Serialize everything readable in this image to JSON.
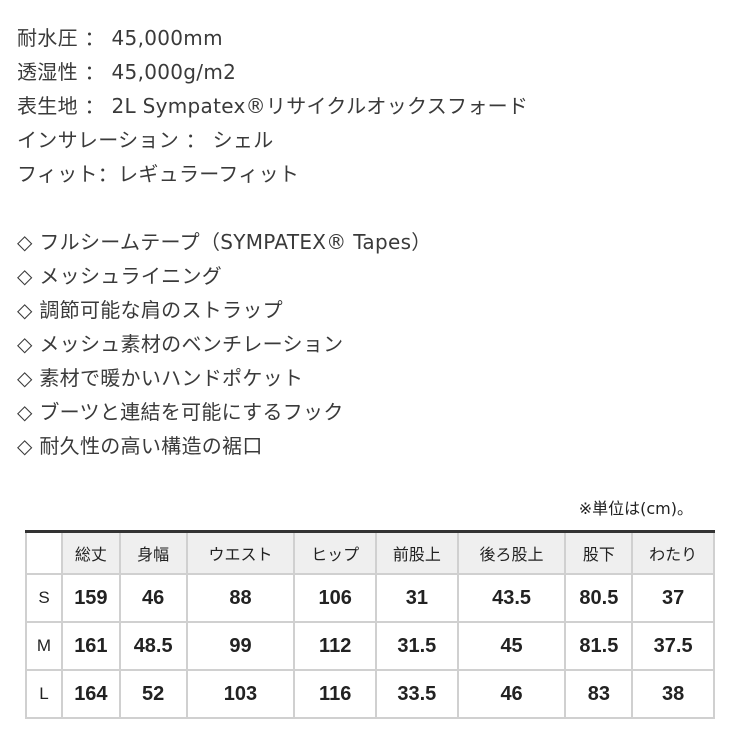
{
  "specs": [
    "耐水圧 ： 45,000mm",
    "透湿性 ： 45,000g/m2",
    "表生地 ： 2L Sympatex®リサイクルオックスフォード",
    "インサレーション ： シェル",
    "フィット：レギュラーフィット"
  ],
  "features": [
    "◇ フルシームテープ（SYMPATEX® Tapes）",
    "◇ メッシュライニング",
    "◇ 調節可能な肩のストラップ",
    "◇ メッシュ素材のベンチレーション",
    "◇ 素材で暖かいハンドポケット",
    "◇ ブーツと連結を可能にするフック",
    "◇ 耐久性の高い構造の裾口"
  ],
  "size_table": {
    "unit_note": "※単位は(cm)。",
    "headers": [
      "総丈",
      "身幅",
      "ウエスト",
      "ヒップ",
      "前股上",
      "後ろ股上",
      "股下",
      "わたり"
    ],
    "rows": [
      {
        "size": "S",
        "values": [
          "159",
          "46",
          "88",
          "106",
          "31",
          "43.5",
          "80.5",
          "37"
        ]
      },
      {
        "size": "M",
        "values": [
          "161",
          "48.5",
          "99",
          "112",
          "31.5",
          "45",
          "81.5",
          "37.5"
        ]
      },
      {
        "size": "L",
        "values": [
          "164",
          "52",
          "103",
          "116",
          "33.5",
          "46",
          "83",
          "38"
        ]
      }
    ]
  }
}
